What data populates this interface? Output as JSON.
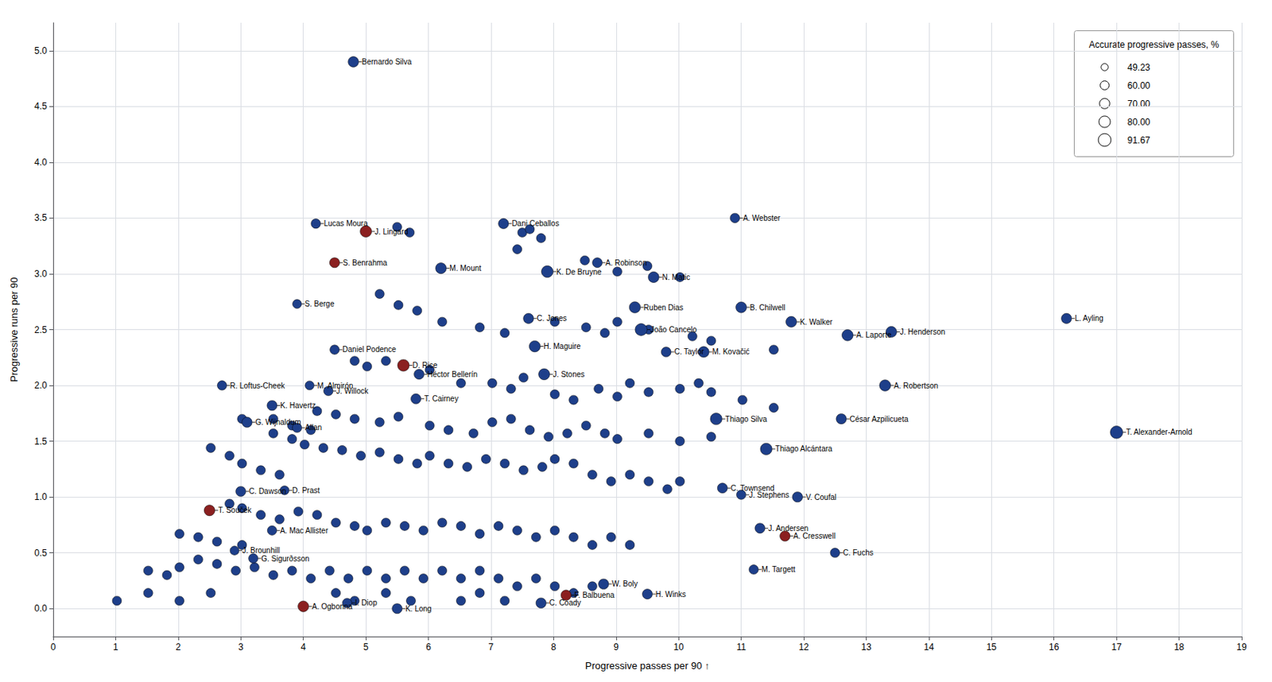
{
  "chart_data": {
    "type": "scatter",
    "xlabel": "Progressive passes per 90 ↑",
    "ylabel": "Progressive runs per 90",
    "xlim": [
      0,
      19
    ],
    "ylim": [
      -0.25,
      5.25
    ],
    "xticks": [
      0,
      1,
      2,
      3,
      4,
      5,
      6,
      7,
      8,
      9,
      10,
      11,
      12,
      13,
      14,
      15,
      16,
      17,
      18,
      19
    ],
    "yticks": [
      {
        "value": 0,
        "label": "0.0"
      },
      0.5,
      {
        "value": 1,
        "label": "1.0"
      },
      1.5,
      {
        "value": 2,
        "label": "2.0"
      },
      2.5,
      {
        "value": 3,
        "label": "3.0"
      },
      3.5,
      {
        "value": 4,
        "label": "4.0"
      },
      4.5,
      {
        "value": 5,
        "label": "5.0"
      }
    ],
    "grid": true,
    "legend": "upper right",
    "legend_title": "Accurate progressive passes, %",
    "legend_values": [
      49.23,
      60.0,
      70.0,
      80.0,
      91.67
    ],
    "legend_labels": [
      "49.23",
      "60.00",
      "70.00",
      "80.00",
      "91.67"
    ],
    "series": [
      {
        "color": "#1e3f8a",
        "size": 42,
        "x": [
          5.5,
          5.7,
          7.5,
          7.8,
          7.62,
          7.42,
          8.5,
          9.5,
          9.02,
          10.02,
          5.22,
          5.52,
          5.82,
          6.22,
          6.82,
          7.22,
          8.02,
          8.52,
          8.82,
          9.02,
          9.52,
          10.22,
          10.52,
          11.52,
          4.82,
          5.02,
          5.32,
          6.02,
          6.52,
          7.02,
          7.32,
          7.52,
          8.02,
          8.32,
          8.72,
          9.02,
          9.22,
          9.52,
          10.02,
          10.32,
          10.52,
          11.02,
          11.52,
          4.22,
          4.52,
          4.82,
          5.22,
          5.52,
          6.02,
          6.32,
          6.72,
          7.02,
          7.32,
          7.62,
          7.92,
          8.22,
          8.52,
          8.82,
          9.02,
          9.52,
          10.02,
          10.52,
          3.52,
          3.82,
          4.02,
          4.32,
          4.62,
          4.92,
          5.22,
          5.52,
          5.82,
          6.02,
          6.32,
          6.62,
          6.92,
          7.22,
          7.52,
          7.82,
          8.02,
          8.32,
          8.62,
          8.92,
          9.22,
          9.52,
          9.82,
          10.02,
          2.52,
          2.82,
          3.02,
          3.32,
          3.62,
          3.02,
          3.52,
          3.82,
          4.12,
          2.82,
          3.02,
          3.32,
          3.62,
          3.92,
          4.22,
          4.52,
          4.82,
          5.02,
          5.32,
          5.62,
          5.92,
          6.22,
          6.52,
          6.82,
          7.12,
          7.42,
          7.72,
          8.02,
          8.32,
          8.62,
          8.92,
          9.22,
          2.02,
          2.32,
          2.62,
          3.02,
          1.52,
          1.82,
          2.02,
          2.32,
          2.62,
          2.92,
          3.22,
          3.52,
          3.82,
          4.12,
          4.42,
          4.72,
          5.02,
          5.32,
          5.62,
          5.92,
          6.22,
          6.52,
          6.82,
          7.12,
          7.42,
          7.72,
          8.02,
          8.32,
          8.62,
          1.02,
          1.52,
          2.02,
          2.52,
          4.52,
          4.82,
          5.32,
          5.72,
          6.52,
          6.82,
          7.22
        ],
        "values": [
          3.42,
          3.37,
          3.37,
          3.32,
          3.4,
          3.22,
          3.12,
          3.07,
          3.02,
          2.97,
          2.82,
          2.72,
          2.67,
          2.57,
          2.52,
          2.47,
          2.57,
          2.52,
          2.47,
          2.57,
          2.5,
          2.44,
          2.4,
          2.32,
          2.22,
          2.17,
          2.22,
          2.14,
          2.02,
          2.02,
          1.97,
          2.07,
          1.92,
          1.87,
          1.97,
          1.9,
          2.02,
          1.94,
          1.97,
          2.02,
          1.94,
          1.87,
          1.8,
          1.77,
          1.74,
          1.7,
          1.67,
          1.72,
          1.64,
          1.6,
          1.57,
          1.67,
          1.7,
          1.6,
          1.54,
          1.57,
          1.64,
          1.57,
          1.52,
          1.57,
          1.5,
          1.54,
          1.57,
          1.52,
          1.47,
          1.44,
          1.42,
          1.37,
          1.4,
          1.34,
          1.3,
          1.37,
          1.3,
          1.27,
          1.34,
          1.3,
          1.24,
          1.27,
          1.34,
          1.3,
          1.2,
          1.14,
          1.2,
          1.14,
          1.07,
          1.14,
          1.44,
          1.37,
          1.3,
          1.24,
          1.2,
          1.7,
          1.7,
          1.64,
          1.6,
          0.94,
          0.9,
          0.84,
          0.8,
          0.87,
          0.84,
          0.77,
          0.74,
          0.7,
          0.77,
          0.74,
          0.7,
          0.77,
          0.74,
          0.67,
          0.74,
          0.7,
          0.64,
          0.7,
          0.64,
          0.57,
          0.64,
          0.57,
          0.67,
          0.64,
          0.6,
          0.57,
          0.34,
          0.3,
          0.37,
          0.44,
          0.4,
          0.34,
          0.37,
          0.3,
          0.34,
          0.27,
          0.34,
          0.27,
          0.34,
          0.27,
          0.34,
          0.27,
          0.34,
          0.27,
          0.34,
          0.27,
          0.2,
          0.27,
          0.2,
          0.14,
          0.2,
          0.07,
          0.14,
          0.07,
          0.14,
          0.14,
          0.07,
          0.14,
          0.07,
          0.07,
          0.14,
          0.07
        ]
      },
      {
        "colors": [
          "#1e3f8a",
          "#8b2020",
          "#8b2020",
          "#1e3f8a"
        ],
        "x": [
          3.0,
          2.5,
          4.0,
          11.9
        ],
        "values": [
          1.05,
          0.88,
          0.02,
          1.0
        ],
        "sizes": [
          50,
          58,
          58,
          52
        ],
        "labels": [
          "C. Dawson",
          "T. Souček",
          "A. Ogbonna",
          "V. Coufal"
        ]
      },
      {
        "colors": [
          "#1e3f8a",
          "#1e3f8a",
          "#8b2020",
          "#8b2020",
          "#1e3f8a",
          "#1e3f8a",
          "#1e3f8a",
          "#1e3f8a",
          "#1e3f8a",
          "#1e3f8a",
          "#1e3f8a",
          "#1e3f8a",
          "#1e3f8a",
          "#1e3f8a",
          "#1e3f8a",
          "#1e3f8a",
          "#1e3f8a",
          "#1e3f8a",
          "#1e3f8a",
          "#1e3f8a",
          "#1e3f8a",
          "#1e3f8a",
          "#1e3f8a",
          "#8b2020",
          "#1e3f8a",
          "#1e3f8a",
          "#1e3f8a",
          "#1e3f8a",
          "#1e3f8a",
          "#1e3f8a",
          "#1e3f8a",
          "#1e3f8a",
          "#1e3f8a",
          "#1e3f8a",
          "#1e3f8a",
          "#1e3f8a",
          "#1e3f8a",
          "#1e3f8a",
          "#1e3f8a",
          "#1e3f8a",
          "#1e3f8a",
          "#1e3f8a",
          "#1e3f8a",
          "#8b2020",
          "#1e3f8a",
          "#1e3f8a",
          "#1e3f8a",
          "#1e3f8a",
          "#1e3f8a",
          "#1e3f8a",
          "#1e3f8a",
          "#1e3f8a",
          "#8b2020",
          "#1e3f8a"
        ],
        "x": [
          4.8,
          4.2,
          5.0,
          4.5,
          7.2,
          10.9,
          8.7,
          6.2,
          7.9,
          9.6,
          3.9,
          9.3,
          7.6,
          9.4,
          11.0,
          11.8,
          12.7,
          13.4,
          16.2,
          4.5,
          7.7,
          9.8,
          10.4,
          5.6,
          5.85,
          7.85,
          13.3,
          2.7,
          4.1,
          4.4,
          5.8,
          3.5,
          10.6,
          12.6,
          3.1,
          3.9,
          17.0,
          11.4,
          3.7,
          10.7,
          11.0,
          3.5,
          11.3,
          11.7,
          2.9,
          3.2,
          12.5,
          11.2,
          8.8,
          9.5,
          4.7,
          5.5,
          8.2,
          7.8
        ],
        "values": [
          4.9,
          3.45,
          3.38,
          3.1,
          3.45,
          3.5,
          3.1,
          3.05,
          3.02,
          2.97,
          2.73,
          2.7,
          2.6,
          2.5,
          2.7,
          2.57,
          2.45,
          2.48,
          2.6,
          2.32,
          2.35,
          2.3,
          2.3,
          2.18,
          2.1,
          2.1,
          2.0,
          2.0,
          2.0,
          1.95,
          1.88,
          1.82,
          1.7,
          1.7,
          1.67,
          1.62,
          1.58,
          1.43,
          1.06,
          1.08,
          1.02,
          0.7,
          0.72,
          0.65,
          0.52,
          0.45,
          0.5,
          0.35,
          0.22,
          0.13,
          0.05,
          0.0,
          0.12,
          0.05
        ],
        "sizes": [
          55,
          45,
          65,
          50,
          52,
          45,
          48,
          58,
          68,
          58,
          40,
          62,
          52,
          72,
          58,
          58,
          62,
          58,
          52,
          44,
          62,
          48,
          58,
          68,
          50,
          62,
          62,
          44,
          40,
          44,
          50,
          50,
          68,
          52,
          52,
          44,
          78,
          68,
          40,
          50,
          44,
          44,
          50,
          52,
          40,
          44,
          44,
          44,
          52,
          50,
          44,
          50,
          52,
          52
        ],
        "labels": [
          "Bernardo Silva",
          "Lucas Moura",
          "J. Lingard",
          "S. Benrahma",
          "Dani Ceballos",
          "A. Webster",
          "A. Robinson",
          "M. Mount",
          "K. De Bruyne",
          "N. Matic",
          "S. Berge",
          "Ruben Dias",
          "C. Jones",
          "João Cancelo",
          "B. Chilwell",
          "K. Walker",
          "A. Laporte",
          "J. Henderson",
          "L. Ayling",
          "Daniel Podence",
          "H. Maguire",
          "C. Taylor",
          "M. Kovačić",
          "D. Rice",
          "Héctor Bellerín",
          "J. Stones",
          "A. Robertson",
          "R. Loftus-Cheek",
          "M. Almirón",
          "J. Willock",
          "T. Cairney",
          "K. Havertz",
          "Thiago Silva",
          "César Azpilicueta",
          "G. Wijnaldum",
          "Allan",
          "T. Alexander-Arnold",
          "Thiago Alcántara",
          "D. Prast",
          "C. Townsend",
          "J. Stephens",
          "A. Mac Allister",
          "J. Andersen",
          "A. Cresswell",
          "J. Brounhill",
          "G. Sigurðsson",
          "C. Fuchs",
          "M. Targett",
          "W. Boly",
          "H. Winks",
          "I. Diop",
          "K. Long",
          "F. Balbuena",
          "C. Coady"
        ]
      }
    ]
  }
}
